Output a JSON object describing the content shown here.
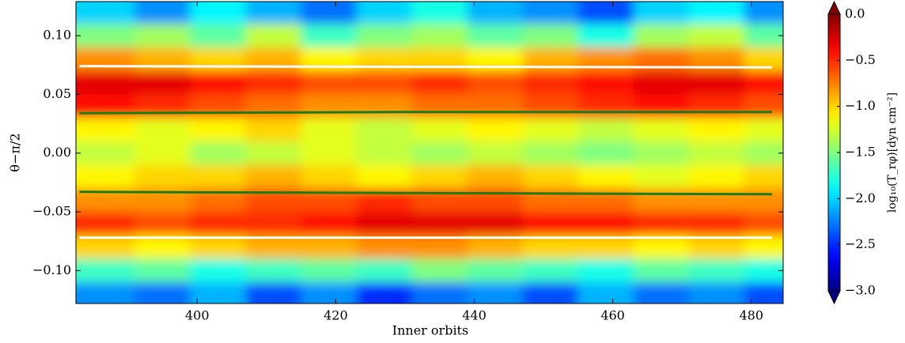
{
  "chart_data": {
    "type": "heatmap",
    "x_label": "Inner orbits",
    "y_label": "θ−π/2",
    "xlim": [
      382.5,
      484.6
    ],
    "ylim": [
      -0.128,
      0.129
    ],
    "xticks": [
      400,
      420,
      440,
      460,
      480
    ],
    "yticks": [
      {
        "value": 0.1,
        "label": "0.10"
      },
      {
        "value": 0.05,
        "label": "0.05"
      },
      {
        "value": 0.0,
        "label": "0.00"
      },
      {
        "value": -0.05,
        "label": "−0.05"
      },
      {
        "value": -0.1,
        "label": "−0.10"
      }
    ],
    "x": [
      387,
      395,
      403,
      411,
      419,
      427,
      435,
      443,
      451,
      459,
      467,
      475,
      483
    ],
    "y": [
      0.12,
      0.1,
      0.08,
      0.06,
      0.04,
      0.02,
      0.0,
      -0.02,
      -0.04,
      -0.06,
      -0.08,
      -0.1,
      -0.12
    ],
    "z": [
      [
        -2.0,
        -2.2,
        -1.9,
        -2.1,
        -2.3,
        -2.0,
        -1.8,
        -2.1,
        -2.2,
        -2.4,
        -2.0,
        -1.9,
        -2.2
      ],
      [
        -1.5,
        -1.4,
        -1.6,
        -1.3,
        -1.7,
        -1.5,
        -1.4,
        -1.6,
        -1.5,
        -1.8,
        -1.4,
        -1.3,
        -1.6
      ],
      [
        -0.8,
        -0.9,
        -1.0,
        -0.9,
        -1.1,
        -1.0,
        -1.0,
        -1.1,
        -0.9,
        -0.8,
        -0.7,
        -0.8,
        -1.0
      ],
      [
        -0.3,
        -0.3,
        -0.4,
        -0.5,
        -0.6,
        -0.6,
        -0.5,
        -0.6,
        -0.5,
        -0.4,
        -0.3,
        -0.3,
        -0.4
      ],
      [
        -0.4,
        -0.5,
        -0.6,
        -0.7,
        -0.8,
        -0.8,
        -0.7,
        -0.7,
        -0.6,
        -0.5,
        -0.4,
        -0.5,
        -0.6
      ],
      [
        -1.1,
        -1.2,
        -1.1,
        -1.0,
        -1.2,
        -1.3,
        -1.2,
        -1.1,
        -1.2,
        -1.3,
        -1.2,
        -1.1,
        -1.2
      ],
      [
        -1.3,
        -1.2,
        -1.4,
        -1.3,
        -1.2,
        -1.3,
        -1.4,
        -1.3,
        -1.4,
        -1.5,
        -1.4,
        -1.3,
        -1.4
      ],
      [
        -1.1,
        -1.0,
        -1.0,
        -0.9,
        -1.0,
        -1.1,
        -1.0,
        -0.9,
        -1.0,
        -1.1,
        -1.2,
        -1.1,
        -1.0
      ],
      [
        -0.8,
        -0.8,
        -0.7,
        -0.6,
        -0.6,
        -0.5,
        -0.6,
        -0.6,
        -0.7,
        -0.7,
        -0.8,
        -0.8,
        -0.8
      ],
      [
        -0.5,
        -0.6,
        -0.5,
        -0.5,
        -0.4,
        -0.3,
        -0.3,
        -0.3,
        -0.4,
        -0.4,
        -0.5,
        -0.5,
        -0.6
      ],
      [
        -1.0,
        -1.1,
        -1.0,
        -0.9,
        -0.9,
        -0.8,
        -0.8,
        -0.9,
        -1.0,
        -1.0,
        -1.1,
        -1.0,
        -1.1
      ],
      [
        -1.7,
        -1.6,
        -1.8,
        -1.7,
        -1.6,
        -1.7,
        -1.5,
        -1.6,
        -1.7,
        -1.8,
        -1.6,
        -1.7,
        -1.8
      ],
      [
        -2.2,
        -2.3,
        -2.1,
        -2.4,
        -2.2,
        -2.5,
        -2.3,
        -2.2,
        -2.4,
        -2.1,
        -2.3,
        -2.2,
        -2.4
      ]
    ],
    "lines": [
      {
        "color": "#ffffff",
        "x": [
          383,
          483
        ],
        "values": [
          0.074,
          0.073
        ]
      },
      {
        "color": "#ffffff",
        "x": [
          383,
          483
        ],
        "values": [
          -0.072,
          -0.072
        ]
      },
      {
        "color": "#1e7a1e",
        "x": [
          383,
          430,
          483
        ],
        "values": [
          0.034,
          0.035,
          0.035
        ]
      },
      {
        "color": "#1e7a1e",
        "x": [
          383,
          430,
          483
        ],
        "values": [
          -0.033,
          -0.034,
          -0.035
        ]
      }
    ],
    "colorbar": {
      "label": "log₁₀(T_rφ)[dyn cm⁻²]",
      "lim": [
        -3.0,
        0.0
      ],
      "ticks": [
        {
          "value": 0.0,
          "label": "0.0"
        },
        {
          "value": -0.5,
          "label": "−0.5"
        },
        {
          "value": -1.0,
          "label": "−1.0"
        },
        {
          "value": -1.5,
          "label": "−1.5"
        },
        {
          "value": -2.0,
          "label": "−2.0"
        },
        {
          "value": -2.5,
          "label": "−2.5"
        },
        {
          "value": -3.0,
          "label": "−3.0"
        }
      ]
    }
  }
}
